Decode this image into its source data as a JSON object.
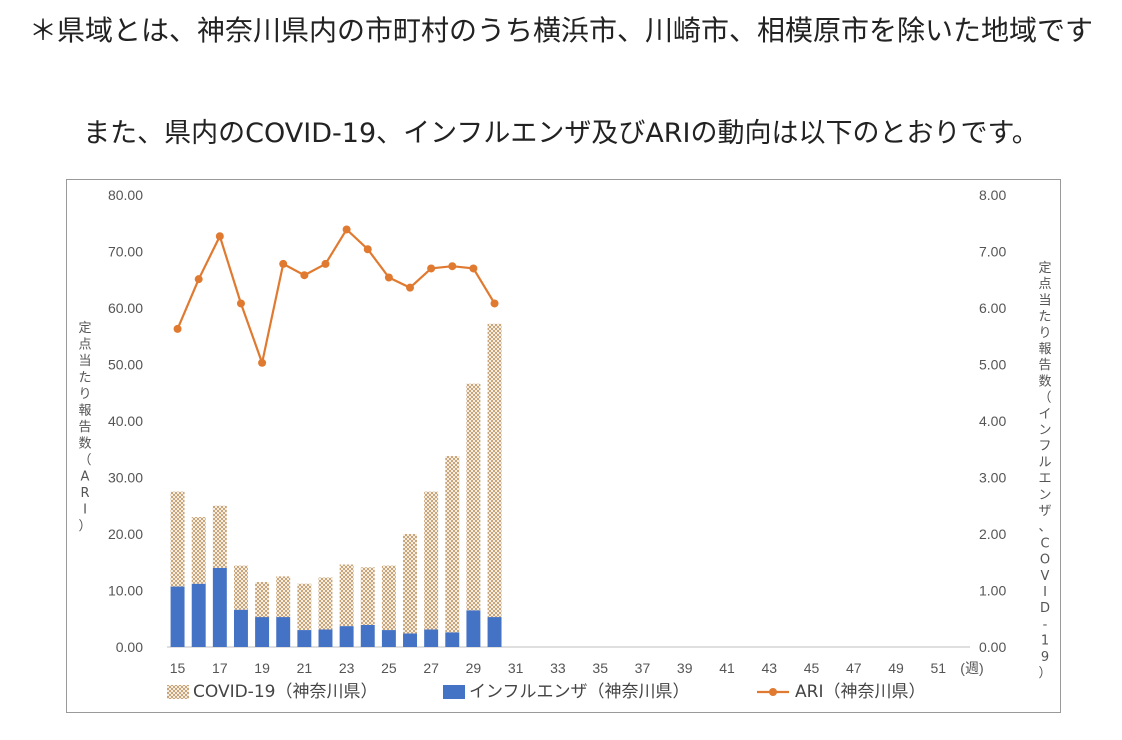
{
  "note": "＊県域とは、神奈川県内の市町村のうち横浜市、川崎市、相模原市を除いた地域です",
  "lead": "また、県内のCOVID-19、インフルエンザ及びARIの動向は以下のとおりです。",
  "chart_data": {
    "type": "bar",
    "x_ticks": [
      "15",
      "17",
      "19",
      "21",
      "23",
      "25",
      "27",
      "29",
      "31",
      "33",
      "35",
      "37",
      "39",
      "41",
      "43",
      "45",
      "47",
      "49",
      "51"
    ],
    "x_unit": "(週)",
    "weeks": [
      15,
      16,
      17,
      18,
      19,
      20,
      21,
      22,
      23,
      24,
      25,
      26,
      27,
      28,
      29,
      30
    ],
    "week_range": [
      15,
      52
    ],
    "left_axis": {
      "label": "定点当たり報告数（ARI）",
      "ticks": [
        "0.00",
        "10.00",
        "20.00",
        "30.00",
        "40.00",
        "50.00",
        "60.00",
        "70.00",
        "80.00"
      ],
      "ylim": [
        0,
        80
      ]
    },
    "right_axis": {
      "label": "定点当たり報告数（インフルエンザ、COVID-19）",
      "ticks": [
        "0.00",
        "1.00",
        "2.00",
        "3.00",
        "4.00",
        "5.00",
        "6.00",
        "7.00",
        "8.00"
      ],
      "ylim": [
        0,
        8
      ]
    },
    "series": [
      {
        "name": "COVID-19（神奈川県）",
        "kind": "stacked-bar",
        "axis": "right",
        "color": "#c9a57a",
        "values": [
          1.68,
          1.18,
          1.1,
          0.78,
          0.62,
          0.72,
          0.82,
          0.92,
          1.09,
          1.02,
          1.14,
          1.76,
          2.44,
          3.12,
          4.01,
          5.19
        ]
      },
      {
        "name": "インフルエンザ（神奈川県）",
        "kind": "stacked-bar",
        "axis": "right",
        "color": "#4472c4",
        "values": [
          1.07,
          1.12,
          1.4,
          0.66,
          0.53,
          0.53,
          0.3,
          0.31,
          0.37,
          0.39,
          0.3,
          0.24,
          0.31,
          0.26,
          0.65,
          0.53
        ]
      },
      {
        "name": "ARI（神奈川県）",
        "kind": "line",
        "axis": "left",
        "color": "#e07a30",
        "values": [
          56.3,
          65.1,
          72.7,
          60.8,
          50.3,
          67.8,
          65.8,
          67.8,
          73.9,
          70.4,
          65.4,
          63.6,
          67.0,
          67.4,
          67.0,
          60.8
        ]
      }
    ],
    "grid": false,
    "legend_position": "bottom"
  }
}
